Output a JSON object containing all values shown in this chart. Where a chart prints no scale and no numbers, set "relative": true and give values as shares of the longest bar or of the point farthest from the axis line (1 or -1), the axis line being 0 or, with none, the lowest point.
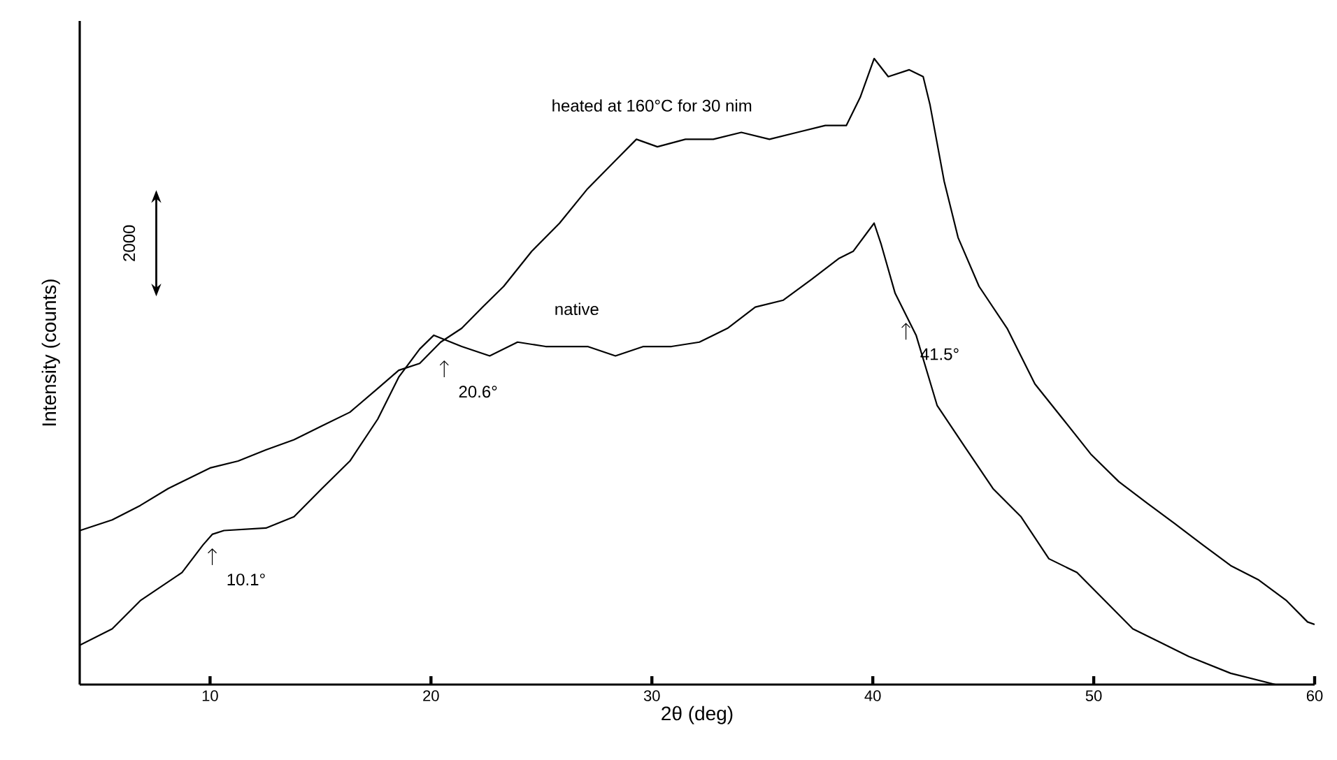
{
  "chart_data": {
    "type": "line",
    "relative": true,
    "xlabel": "2θ  (deg)",
    "ylabel": "Intensity (counts)",
    "xlim": [
      4.1,
      60
    ],
    "xticks": [
      10,
      20,
      30,
      40,
      50,
      60
    ],
    "marker": "none",
    "line_style": "solid",
    "series": [
      {
        "name": "heated at 160°C for 30 nim",
        "color": "#000000",
        "x": [
          4.11,
          5.57,
          6.84,
          8.1,
          9.37,
          10,
          11.27,
          12.53,
          13.8,
          15.06,
          16.33,
          17.59,
          18.54,
          19.49,
          20.44,
          21.39,
          22.34,
          23.29,
          24.56,
          25.82,
          27.09,
          28.35,
          29.3,
          30.25,
          31.52,
          32.78,
          34.05,
          35.32,
          36.58,
          37.85,
          38.8,
          39.43,
          40.06,
          40.7,
          41.65,
          42.28,
          42.59,
          43.23,
          43.86,
          44.81,
          46.08,
          47.34,
          48.61,
          49.87,
          51.14,
          52.41,
          53.67,
          54.94,
          56.2,
          57.47,
          58.73,
          59.68,
          60
        ],
        "values": [
          0.246,
          0.263,
          0.286,
          0.313,
          0.335,
          0.346,
          0.357,
          0.375,
          0.391,
          0.413,
          0.435,
          0.473,
          0.502,
          0.513,
          0.547,
          0.569,
          0.603,
          0.636,
          0.692,
          0.737,
          0.792,
          0.837,
          0.871,
          0.859,
          0.871,
          0.871,
          0.882,
          0.871,
          0.882,
          0.893,
          0.893,
          0.938,
          1,
          0.971,
          0.982,
          0.971,
          0.926,
          0.804,
          0.714,
          0.636,
          0.569,
          0.48,
          0.424,
          0.368,
          0.324,
          0.29,
          0.257,
          0.223,
          0.19,
          0.167,
          0.134,
          0.1,
          0.096
        ]
      },
      {
        "name": "native",
        "color": "#000000",
        "x": [
          4.11,
          5.57,
          6.84,
          8.73,
          9.68,
          10.1,
          10.63,
          12.53,
          13.8,
          15.06,
          16.33,
          17.59,
          18.54,
          19.49,
          20.13,
          21.39,
          22.66,
          23.92,
          25.19,
          27.09,
          28.35,
          29.62,
          30.89,
          32.15,
          33.42,
          34.68,
          35.95,
          37.22,
          38.48,
          39.11,
          40.06,
          40.38,
          41.01,
          41.96,
          42.91,
          44.18,
          45.44,
          46.71,
          47.97,
          49.24,
          50.51,
          51.77,
          53.04,
          54.3,
          56.2,
          58.23
        ],
        "values": [
          0.063,
          0.089,
          0.134,
          0.179,
          0.223,
          0.24,
          0.246,
          0.25,
          0.268,
          0.313,
          0.357,
          0.424,
          0.491,
          0.536,
          0.558,
          0.54,
          0.525,
          0.547,
          0.54,
          0.54,
          0.525,
          0.54,
          0.54,
          0.547,
          0.569,
          0.603,
          0.614,
          0.647,
          0.681,
          0.692,
          0.737,
          0.703,
          0.625,
          0.558,
          0.446,
          0.379,
          0.313,
          0.268,
          0.201,
          0.179,
          0.134,
          0.089,
          0.067,
          0.045,
          0.018,
          0
        ]
      }
    ],
    "annotations": [
      "2000",
      {
        "text": "10.1°",
        "x": 10.1,
        "y": 0.24
      },
      {
        "text": "20.6°",
        "x": 20.6,
        "y": 0.54
      },
      {
        "text": "41.5°",
        "x": 41.5,
        "y": 0.6
      }
    ]
  }
}
